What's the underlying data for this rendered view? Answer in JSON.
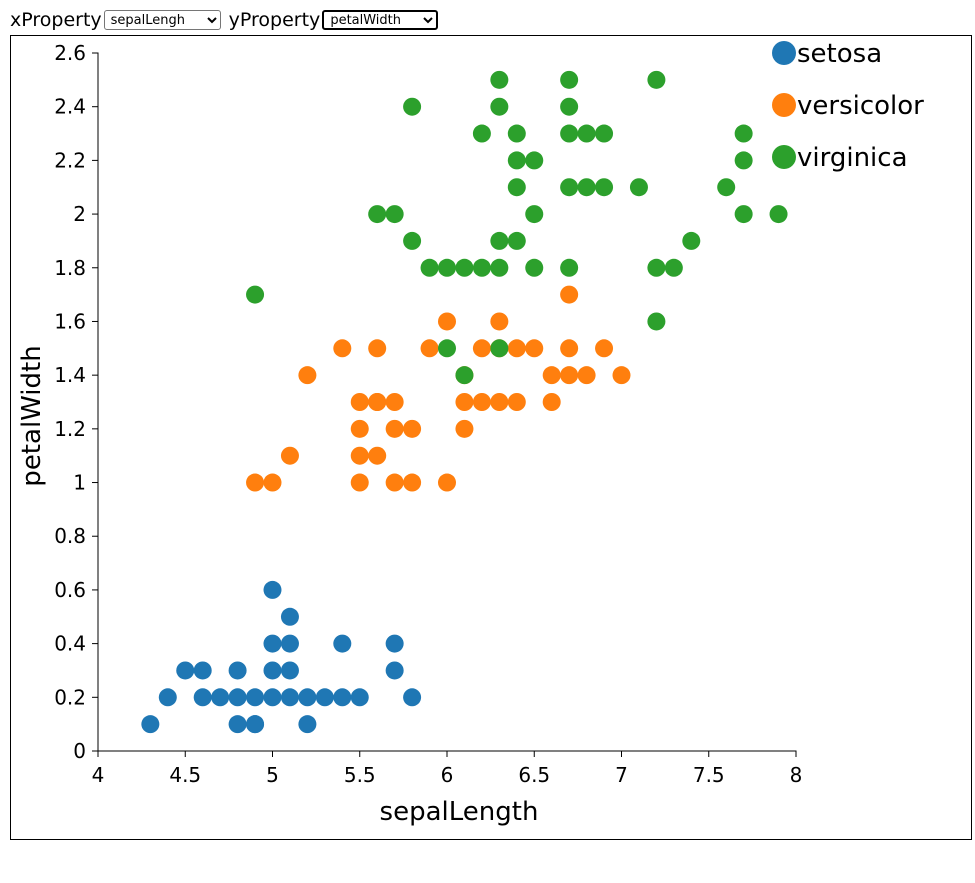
{
  "controls": {
    "x_label": "xProperty",
    "y_label": "yProperty",
    "x_selected": "sepalLengh",
    "y_selected": "petalWidth"
  },
  "chart_data": {
    "type": "scatter",
    "xlabel": "sepalLength",
    "ylabel": "petalWidth",
    "xlim": [
      4,
      8
    ],
    "ylim": [
      0,
      2.6
    ],
    "x_ticks": [
      "4",
      "4.5",
      "5",
      "5.5",
      "6",
      "6.5",
      "7",
      "7.5",
      "8"
    ],
    "y_ticks": [
      "0",
      "0.2",
      "0.4",
      "0.6",
      "0.8",
      "1",
      "1.2",
      "1.4",
      "1.6",
      "1.8",
      "2",
      "2.2",
      "2.4",
      "2.6"
    ],
    "grid": false,
    "legend_position": "top-right",
    "series": [
      {
        "name": "setosa",
        "color": "#1f77b4",
        "x": [
          4.3,
          4.4,
          4.5,
          4.6,
          4.6,
          4.7,
          4.8,
          4.8,
          4.8,
          4.9,
          4.9,
          4.9,
          5.0,
          5.0,
          5.0,
          5.0,
          5.1,
          5.1,
          5.1,
          5.1,
          5.2,
          5.2,
          5.3,
          5.4,
          5.4,
          5.5,
          5.7,
          5.7,
          5.8
        ],
        "y": [
          0.1,
          0.2,
          0.3,
          0.3,
          0.2,
          0.2,
          0.3,
          0.2,
          0.1,
          0.2,
          0.1,
          0.1,
          0.6,
          0.4,
          0.3,
          0.2,
          0.5,
          0.4,
          0.3,
          0.2,
          0.2,
          0.1,
          0.2,
          0.4,
          0.2,
          0.2,
          0.4,
          0.3,
          0.2
        ]
      },
      {
        "name": "versicolor",
        "color": "#ff7f0e",
        "x": [
          4.9,
          5.0,
          5.1,
          5.2,
          5.4,
          5.5,
          5.5,
          5.5,
          5.5,
          5.6,
          5.6,
          5.6,
          5.6,
          5.7,
          5.7,
          5.7,
          5.8,
          5.8,
          5.9,
          6.0,
          6.0,
          6.1,
          6.1,
          6.1,
          6.2,
          6.2,
          6.3,
          6.3,
          6.3,
          6.4,
          6.4,
          6.5,
          6.6,
          6.6,
          6.7,
          6.7,
          6.7,
          6.8,
          6.9,
          7.0
        ],
        "y": [
          1.0,
          1.0,
          1.1,
          1.4,
          1.5,
          1.3,
          1.2,
          1.1,
          1.0,
          1.5,
          1.3,
          1.1,
          1.3,
          1.3,
          1.2,
          1.0,
          1.2,
          1.0,
          1.5,
          1.6,
          1.0,
          1.4,
          1.3,
          1.2,
          1.5,
          1.3,
          1.6,
          1.5,
          1.3,
          1.5,
          1.3,
          1.5,
          1.4,
          1.3,
          1.7,
          1.5,
          1.4,
          1.4,
          1.5,
          1.4
        ]
      },
      {
        "name": "virginica",
        "color": "#2ca02c",
        "x": [
          4.9,
          5.6,
          5.7,
          5.8,
          5.8,
          5.9,
          6.0,
          6.0,
          6.1,
          6.1,
          6.2,
          6.2,
          6.3,
          6.3,
          6.3,
          6.3,
          6.3,
          6.4,
          6.4,
          6.4,
          6.4,
          6.5,
          6.5,
          6.5,
          6.7,
          6.7,
          6.7,
          6.7,
          6.7,
          6.8,
          6.8,
          6.9,
          6.9,
          7.1,
          7.2,
          7.2,
          7.2,
          7.3,
          7.4,
          7.6,
          7.7,
          7.7,
          7.7,
          7.9
        ],
        "y": [
          1.7,
          2.0,
          2.0,
          2.4,
          1.9,
          1.8,
          1.8,
          1.5,
          1.8,
          1.4,
          2.3,
          1.8,
          2.5,
          2.4,
          1.9,
          1.8,
          1.5,
          2.3,
          2.2,
          2.1,
          1.9,
          2.2,
          2.0,
          1.8,
          2.5,
          2.4,
          2.3,
          2.1,
          1.8,
          2.3,
          2.1,
          2.3,
          2.1,
          2.1,
          2.5,
          1.8,
          1.6,
          1.8,
          1.9,
          2.1,
          2.3,
          2.2,
          2.0,
          2.0
        ]
      }
    ]
  }
}
